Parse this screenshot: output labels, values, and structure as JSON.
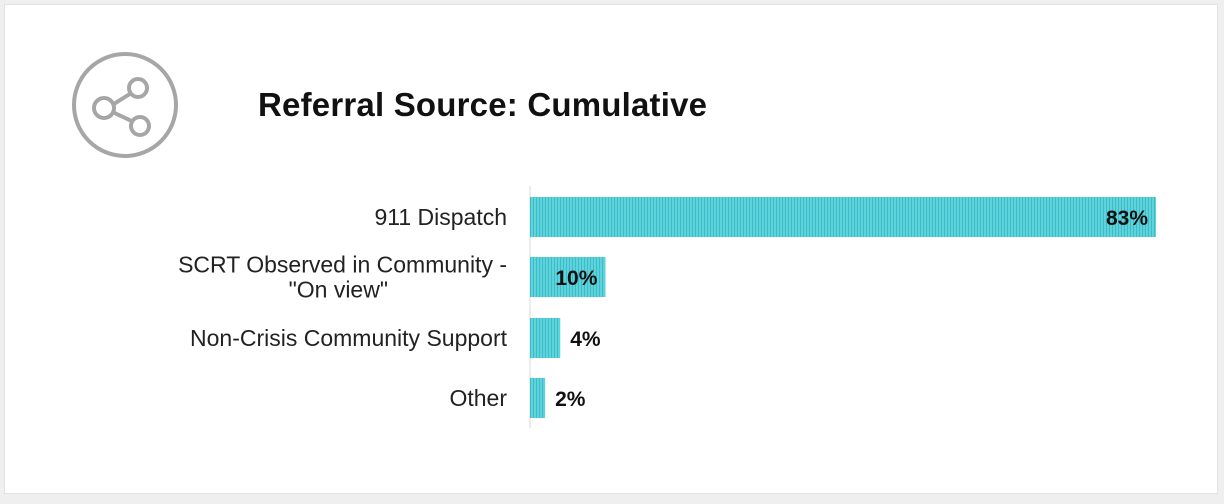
{
  "colors": {
    "bar": "#5fd3db",
    "bar_stripe": "#3cbcc6",
    "axis": "#d9d9d9",
    "icon": "#a6a6a6"
  },
  "header": {
    "icon": "share-icon",
    "title": "Referral Source: Cumulative"
  },
  "chart_data": {
    "type": "bar",
    "orientation": "horizontal",
    "title": "Referral Source: Cumulative",
    "categories": [
      "911 Dispatch",
      "SCRT Observed in Community - \"On view\"",
      "Non-Crisis Community Support",
      "Other"
    ],
    "category_lines": [
      [
        "911 Dispatch"
      ],
      [
        "SCRT Observed in Community -",
        "\"On view\""
      ],
      [
        "Non-Crisis Community Support"
      ],
      [
        "Other"
      ]
    ],
    "values": [
      83,
      10,
      4,
      2
    ],
    "value_labels": [
      "83%",
      "10%",
      "4%",
      "2%"
    ],
    "xlim": [
      0,
      83
    ],
    "grid": false,
    "legend": "none"
  }
}
